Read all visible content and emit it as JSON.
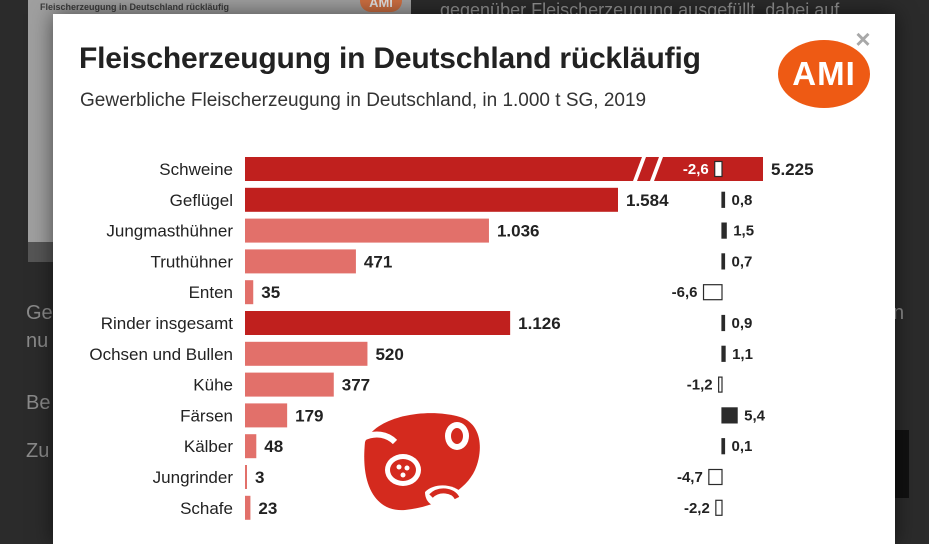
{
  "background": {
    "right_text": "gegenüber Fleischerzeugung ausgefüllt, dabei auf",
    "left_lines": [
      "Ge",
      "nu",
      "Be",
      "Zu"
    ],
    "right_letter": "n",
    "card_title": "Fleischerzeugung in Deutschland rückläufig",
    "card_badge": "AMI"
  },
  "modal": {
    "close_glyph": "×"
  },
  "logo": {
    "text": "AMI",
    "color": "#ee5a14"
  },
  "colors": {
    "dark_bar": "#c0201e",
    "light_bar": "#e2706a",
    "change_box_dark": "#2b2b2b",
    "change_box_light": "#ffffff"
  },
  "chart_data": {
    "type": "bar",
    "title": "Fleischerzeugung in Deutschland rückläufig",
    "subtitle": "Gewerbliche Fleischerzeugung in Deutschland, in 1.000 t SG, 2019",
    "categories": [
      "Schweine",
      "Geflügel",
      "Jungmasthühner",
      "Truthühner",
      "Enten",
      "Rinder insgesamt",
      "Ochsen und Bullen",
      "Kühe",
      "Färsen",
      "Kälber",
      "Jungrinder",
      "Schafe"
    ],
    "values": [
      5225,
      1584,
      1036,
      471,
      35,
      1126,
      520,
      377,
      179,
      48,
      3,
      23
    ],
    "value_labels": [
      "5.225",
      "1.584",
      "1.036",
      "471",
      "35",
      "1.126",
      "520",
      "377",
      "179",
      "48",
      "3",
      "23"
    ],
    "levels": [
      "main",
      "main",
      "sub",
      "sub",
      "sub",
      "main",
      "sub",
      "sub",
      "sub",
      "sub",
      "sub",
      "sub"
    ],
    "change_percent": [
      -2.6,
      0.8,
      1.5,
      0.7,
      -6.6,
      0.9,
      1.1,
      -1.2,
      5.4,
      0.1,
      -4.7,
      -2.2
    ],
    "change_labels": [
      "-2,6",
      "0,8",
      "1,5",
      "0,7",
      "-6,6",
      "0,9",
      "1,1",
      "-1,2",
      "5,4",
      "0,1",
      "-4,7",
      "-2,2"
    ],
    "axis_break": {
      "category": "Schweine"
    }
  }
}
